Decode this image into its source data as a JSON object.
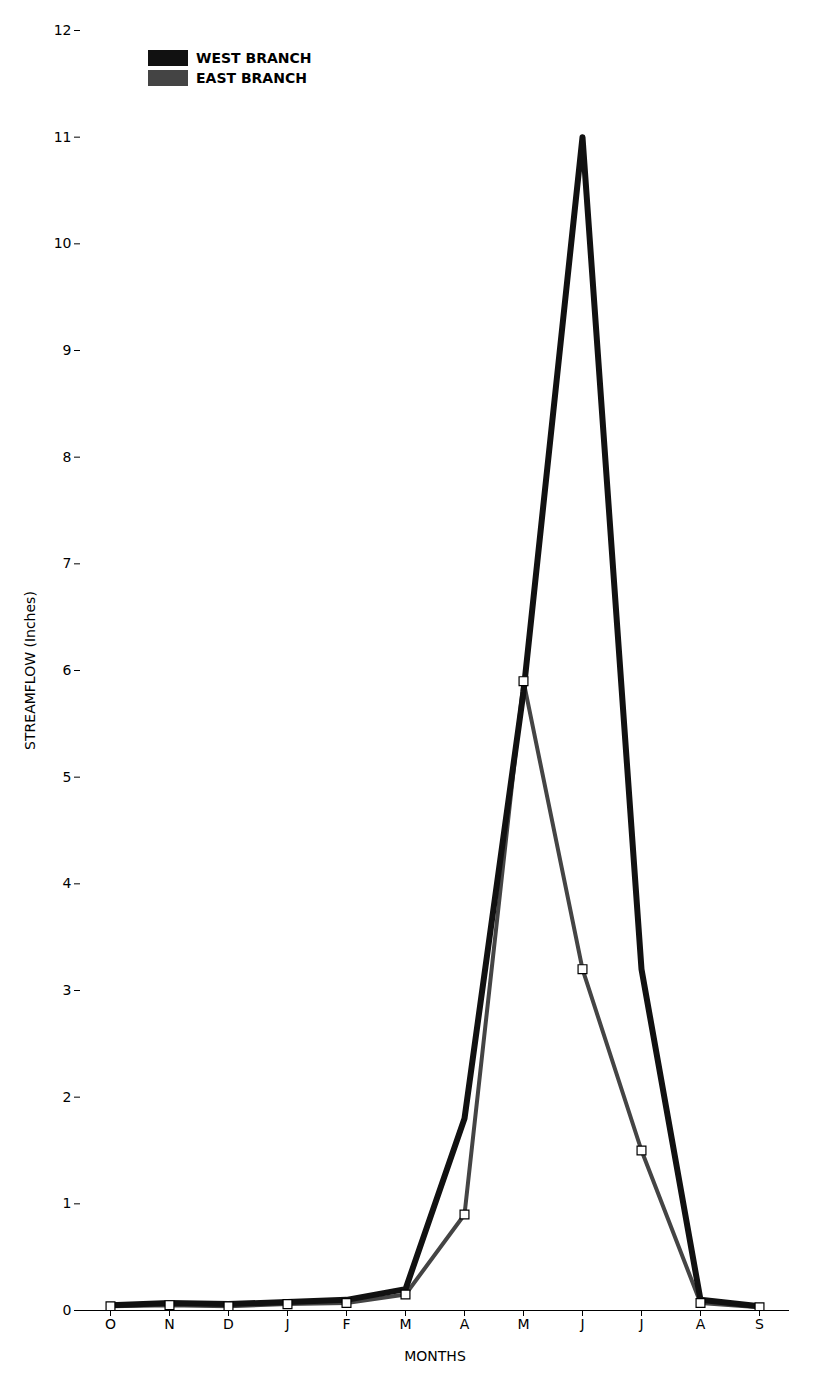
{
  "chart_data": {
    "type": "line",
    "categories": [
      "O",
      "N",
      "D",
      "J",
      "F",
      "M",
      "A",
      "M",
      "J",
      "J",
      "A",
      "S"
    ],
    "series": [
      {
        "name": "WEST BRANCH",
        "color": "#111111",
        "values": [
          0.05,
          0.07,
          0.06,
          0.08,
          0.1,
          0.2,
          1.8,
          5.8,
          11.0,
          3.2,
          0.1,
          0.04
        ]
      },
      {
        "name": "EAST BRANCH",
        "color": "#444444",
        "marker": "square",
        "values": [
          0.04,
          0.05,
          0.04,
          0.06,
          0.07,
          0.15,
          0.9,
          5.9,
          3.2,
          1.5,
          0.07,
          0.03
        ]
      }
    ],
    "xlabel": "MONTHS",
    "ylabel": "STREAMFLOW (Inches)",
    "ylim": [
      0,
      12
    ],
    "yticks": [
      0,
      1,
      2,
      3,
      4,
      5,
      6,
      7,
      8,
      9,
      10,
      11,
      12
    ],
    "grid": false,
    "legend": "upper left"
  }
}
